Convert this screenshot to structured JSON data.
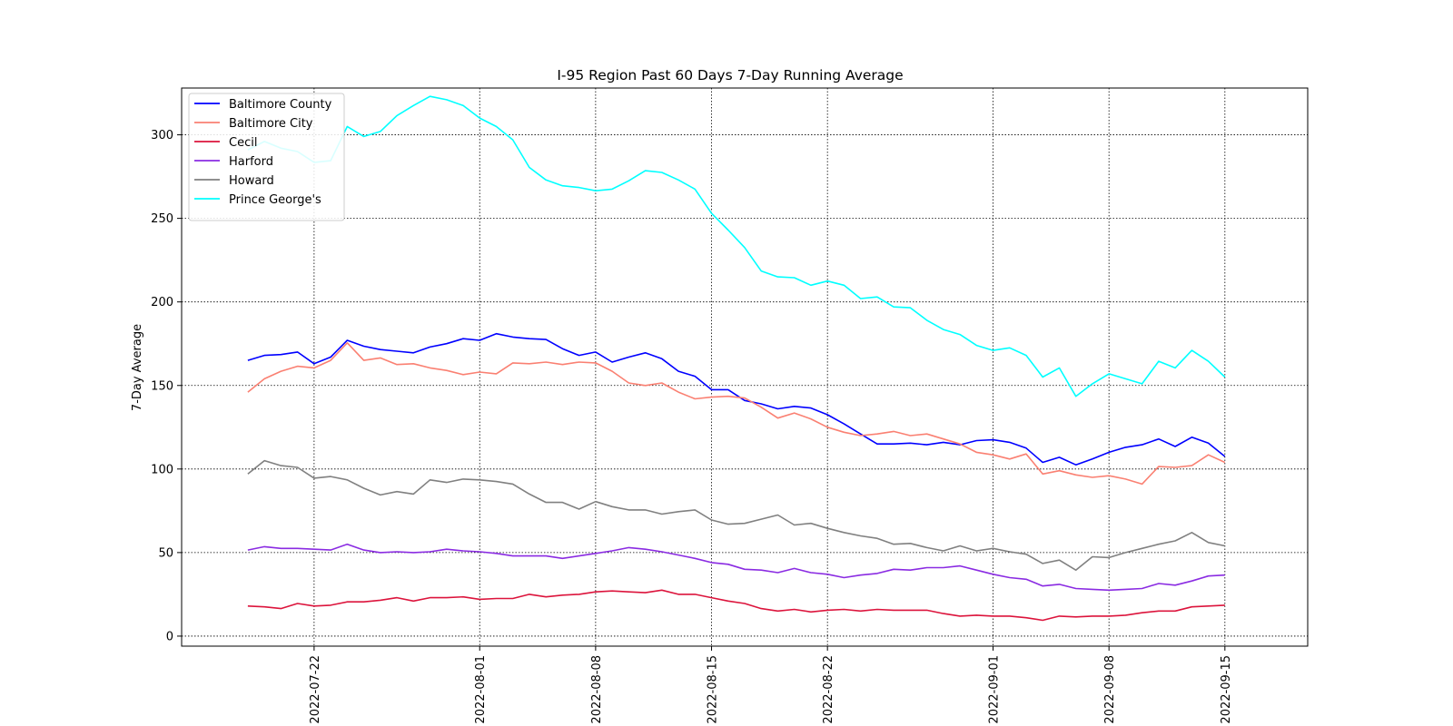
{
  "chart_data": {
    "type": "line",
    "title": "I-95 Region Past 60 Days 7-Day Running Average",
    "xlabel": "",
    "ylabel": "7-Day Average",
    "start_date": "2022-07-18",
    "x_ticks": [
      "2022-07-22",
      "2022-08-01",
      "2022-08-08",
      "2022-08-15",
      "2022-08-22",
      "2022-09-01",
      "2022-09-08",
      "2022-09-15"
    ],
    "y_ticks": [
      0,
      50,
      100,
      150,
      200,
      250,
      300
    ],
    "xlim": [
      "2022-07-14",
      "2022-09-20"
    ],
    "ylim": [
      -6,
      328
    ],
    "grid": true,
    "grid_style": "dotted",
    "legend_position": "upper-left",
    "series": [
      {
        "name": "Baltimore County",
        "color": "#0000ff",
        "values": [
          165,
          168,
          168.5,
          170,
          163,
          167,
          177,
          173.5,
          171.5,
          170.5,
          169.5,
          173,
          175,
          178,
          177,
          181,
          179,
          178,
          177.5,
          172,
          168,
          170,
          164,
          167,
          169.5,
          166,
          158.5,
          155.5,
          147.5,
          147.5,
          141,
          139,
          136,
          137.5,
          136.5,
          132.5,
          127,
          121,
          115,
          115,
          115.5,
          114.5,
          116,
          114.5,
          117,
          117.5,
          116,
          112.5,
          104,
          107,
          102.5,
          106,
          110,
          113,
          114.5,
          118,
          113.5,
          119,
          115.5,
          107.5
        ]
      },
      {
        "name": "Baltimore City",
        "color": "#fa8072",
        "values": [
          146,
          154,
          158.5,
          161.5,
          160.5,
          165,
          175.5,
          165,
          166.5,
          162.5,
          163,
          160.5,
          159,
          156.5,
          158,
          157,
          163.5,
          163,
          164,
          162.5,
          164,
          163.5,
          158.5,
          151.5,
          150,
          151.5,
          146,
          142,
          143,
          143.5,
          142.5,
          137,
          130.5,
          133.5,
          130,
          125,
          122,
          120,
          121,
          122.5,
          120,
          121,
          118,
          115,
          110,
          108.5,
          106,
          109,
          97,
          99,
          96.5,
          95,
          96,
          94,
          91,
          101.5,
          101,
          102,
          108.5,
          104
        ]
      },
      {
        "name": "Cecil",
        "color": "#dc143c",
        "values": [
          18,
          17.5,
          16.5,
          19.5,
          18,
          18.5,
          20.5,
          20.5,
          21.5,
          23,
          21,
          23,
          23,
          23.5,
          22,
          22.5,
          22.5,
          25,
          23.5,
          24.5,
          25,
          26.5,
          27,
          26.5,
          26,
          27.5,
          25,
          25,
          23,
          21,
          19.5,
          16.5,
          15,
          16,
          14.5,
          15.5,
          16,
          15,
          16,
          15.5,
          15.5,
          15.5,
          13.5,
          12,
          12.5,
          12,
          12,
          11,
          9.5,
          12,
          11.5,
          12,
          12,
          12.5,
          14,
          15,
          15,
          17.5,
          18,
          18.5
        ]
      },
      {
        "name": "Harford",
        "color": "#8a2be2",
        "values": [
          51.5,
          53.5,
          52.5,
          52.5,
          52,
          51.5,
          55,
          51.5,
          50,
          50.5,
          50,
          50.5,
          52,
          51,
          50.5,
          49.5,
          48,
          48,
          48,
          46.5,
          48,
          49.5,
          51,
          53,
          52,
          50.5,
          48.5,
          46.5,
          44,
          43,
          40,
          39.5,
          38,
          40.5,
          38,
          37,
          35,
          36.5,
          37.5,
          40,
          39.5,
          41,
          41,
          42,
          39.5,
          37,
          35,
          34,
          30,
          31,
          28.5,
          28,
          27.5,
          28,
          28.5,
          31.5,
          30.5,
          33,
          36,
          36.5
        ]
      },
      {
        "name": "Howard",
        "color": "#808080",
        "values": [
          97,
          105,
          102,
          101,
          94.5,
          95.5,
          93.5,
          88.5,
          84.5,
          86.5,
          85,
          93.5,
          92,
          94,
          93.5,
          92.5,
          91,
          85,
          80,
          80,
          76,
          80.5,
          77.5,
          75.5,
          75.5,
          73,
          74.5,
          75.5,
          69.5,
          67,
          67.5,
          70,
          72.5,
          66.5,
          67.5,
          64.5,
          62,
          60,
          58.5,
          55,
          55.5,
          53,
          51,
          54,
          51,
          52.5,
          50.5,
          49,
          43.5,
          45.5,
          39.5,
          47.5,
          47,
          50,
          52.5,
          55,
          57,
          62,
          56,
          54
        ]
      },
      {
        "name": "Prince George's",
        "color": "#00ffff",
        "values": [
          291,
          296,
          292,
          290,
          283.5,
          284.5,
          305,
          299,
          302,
          311.5,
          317.5,
          323,
          321,
          317.5,
          310,
          305,
          297,
          280.5,
          273,
          269.5,
          268.5,
          266.5,
          267.5,
          272.5,
          278.5,
          277.5,
          273,
          267.5,
          253,
          243,
          232.5,
          218.5,
          215,
          214.5,
          210,
          212.5,
          210,
          202,
          203,
          197,
          196.5,
          189,
          183.5,
          180.5,
          174,
          171,
          172.5,
          168,
          155,
          160.5,
          143.5,
          151,
          157,
          154,
          151,
          164.5,
          160.5,
          171,
          164.5,
          155
        ]
      }
    ]
  }
}
